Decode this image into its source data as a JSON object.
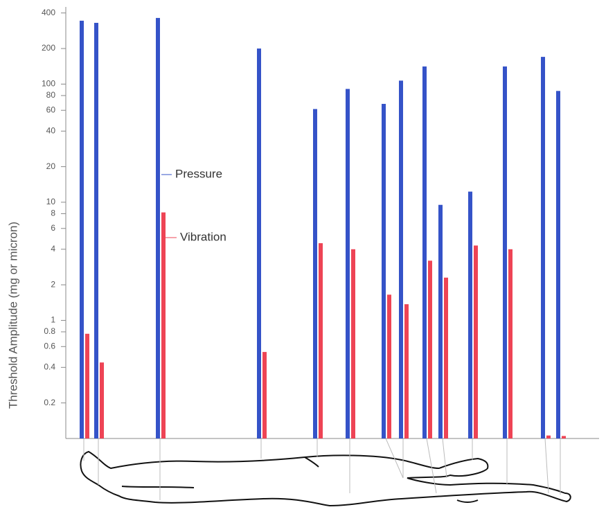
{
  "chart_data": {
    "type": "bar",
    "y_label": "Threshold Amplitude (mg or micron)",
    "categories": [
      null,
      null,
      null,
      null,
      null,
      null,
      null,
      null,
      null,
      null,
      null,
      null,
      null,
      null
    ],
    "series": [
      {
        "name": "Pressure",
        "color": "#3553c8",
        "values": [
          344,
          330,
          363,
          200,
          61.5,
          91,
          68,
          107,
          141,
          9.5,
          12.3,
          141,
          170,
          87.5
        ]
      },
      {
        "name": "Vibration",
        "color": "#ee4455",
        "values": [
          0.77,
          0.44,
          8.2,
          0.54,
          4.5,
          4.0,
          1.65,
          1.37,
          3.2,
          2.3,
          4.3,
          4.0,
          0.106,
          0.105
        ]
      }
    ],
    "log_scale": true,
    "ylim": [
      0.1,
      450
    ],
    "yticks": [
      0.2,
      0.4,
      0.6,
      0.8,
      1,
      2,
      4,
      6,
      8,
      10,
      20,
      40,
      60,
      80,
      100,
      200,
      400
    ]
  }
}
